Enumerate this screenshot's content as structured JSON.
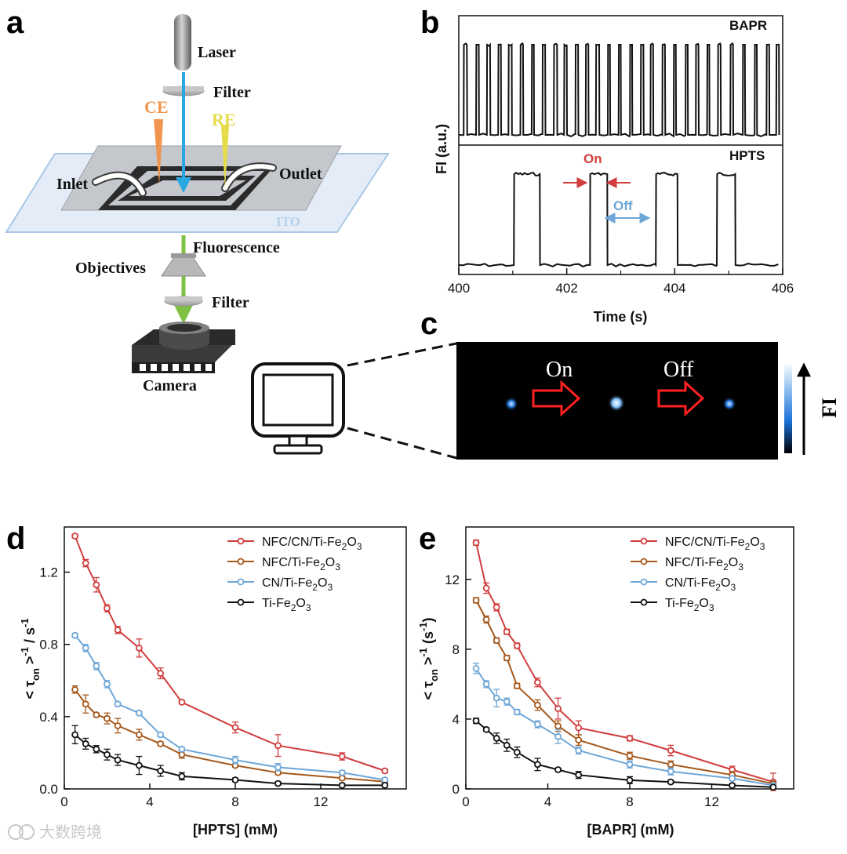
{
  "panels": {
    "a": "a",
    "b": "b",
    "c": "c",
    "d": "d",
    "e": "e"
  },
  "schematic": {
    "laser": "Laser",
    "filter_top": "Filter",
    "ce": "CE",
    "re": "RE",
    "inlet": "Inlet",
    "outlet": "Outlet",
    "ito": "ITO",
    "fluorescence": "Fluorescence",
    "objectives": "Objectives",
    "filter_bottom": "Filter",
    "camera": "Camera"
  },
  "colors": {
    "red": "#d13e3e",
    "brown": "#a5581b",
    "blue": "#6ea6d8",
    "black": "#111111",
    "laser_beam": "#2aa7e0",
    "fluorescence_beam": "#7ec143",
    "ce": "#f0954f",
    "re": "#e6dc4b"
  },
  "trace_panel": {
    "ylabel": "FI (a.u.)",
    "xlabel": "Time (s)",
    "top_label": "BAPR",
    "bottom_label": "HPTS",
    "on_label": "On",
    "off_label": "Off",
    "xlim": [
      400,
      406
    ],
    "xticks": [
      "400",
      "402",
      "404",
      "406"
    ],
    "bapr_pulses": [
      [
        400.09,
        400.15
      ],
      [
        400.32,
        400.37
      ],
      [
        400.52,
        400.58
      ],
      [
        400.73,
        400.78
      ],
      [
        400.92,
        400.98
      ],
      [
        401.14,
        401.19
      ],
      [
        401.35,
        401.39
      ],
      [
        401.55,
        401.6
      ],
      [
        401.76,
        401.82
      ],
      [
        401.95,
        402.0
      ],
      [
        402.16,
        402.21
      ],
      [
        402.35,
        402.4
      ],
      [
        402.54,
        402.6
      ],
      [
        402.76,
        402.8
      ],
      [
        402.96,
        403.0
      ],
      [
        403.17,
        403.21
      ],
      [
        403.37,
        403.42
      ],
      [
        403.55,
        403.6
      ],
      [
        403.77,
        403.82
      ],
      [
        403.98,
        404.02
      ],
      [
        404.2,
        404.24
      ],
      [
        404.39,
        404.44
      ],
      [
        404.6,
        404.64
      ],
      [
        404.8,
        404.85
      ],
      [
        405.03,
        405.08
      ],
      [
        405.26,
        405.3
      ],
      [
        405.48,
        405.52
      ],
      [
        405.7,
        405.75
      ],
      [
        405.88,
        405.93
      ]
    ],
    "hpts_pulses": [
      [
        401.02,
        401.5
      ],
      [
        402.43,
        402.75
      ],
      [
        403.65,
        404.05
      ],
      [
        404.78,
        405.12
      ]
    ]
  },
  "imaging_panel": {
    "on_label": "On",
    "off_label": "Off",
    "fi_label": "FI"
  },
  "chart_data": [
    {
      "type": "line",
      "panel": "d",
      "xlabel": "[HPTS] (mM)",
      "ylabel": "< τon >-1 / s-1",
      "xlim": [
        0,
        16
      ],
      "ylim": [
        0,
        1.45
      ],
      "xticks": [
        0,
        4,
        8,
        12
      ],
      "yticks": [
        0.0,
        0.4,
        0.8,
        1.2
      ],
      "x": [
        0.5,
        1,
        1.5,
        2,
        2.5,
        3.5,
        4.5,
        5.5,
        8,
        10,
        13,
        15
      ],
      "series": [
        {
          "name": "NFC/CN/Ti-Fe2O3",
          "color": "#d13e3e",
          "values": [
            1.4,
            1.25,
            1.13,
            1.0,
            0.88,
            0.78,
            0.64,
            0.48,
            0.34,
            0.24,
            0.18,
            0.1
          ],
          "errors": [
            0.01,
            0.02,
            0.04,
            0.02,
            0.02,
            0.05,
            0.03,
            0.01,
            0.03,
            0.06,
            0.02,
            0.01
          ]
        },
        {
          "name": "NFC/Ti-Fe2O3",
          "color": "#a5581b",
          "values": [
            0.55,
            0.47,
            0.41,
            0.39,
            0.35,
            0.3,
            0.25,
            0.19,
            0.13,
            0.09,
            0.06,
            0.04
          ],
          "errors": [
            0.02,
            0.05,
            0.01,
            0.03,
            0.04,
            0.03,
            0.01,
            0.02,
            0.01,
            0.01,
            0.01,
            0.01
          ]
        },
        {
          "name": "CN/Ti-Fe2O3",
          "color": "#6ea6d8",
          "values": [
            0.85,
            0.78,
            0.68,
            0.58,
            0.47,
            0.42,
            0.3,
            0.22,
            0.16,
            0.12,
            0.09,
            0.05
          ],
          "errors": [
            0.01,
            0.02,
            0.02,
            0.02,
            0.01,
            0.01,
            0.01,
            0.01,
            0.02,
            0.02,
            0.01,
            0.01
          ]
        },
        {
          "name": "Ti-Fe2O3",
          "color": "#111111",
          "values": [
            0.3,
            0.25,
            0.22,
            0.19,
            0.16,
            0.13,
            0.1,
            0.07,
            0.05,
            0.03,
            0.02,
            0.02
          ],
          "errors": [
            0.05,
            0.03,
            0.02,
            0.03,
            0.03,
            0.05,
            0.03,
            0.02,
            0.01,
            0.01,
            0.01,
            0.01
          ]
        }
      ]
    },
    {
      "type": "line",
      "panel": "e",
      "xlabel": "[BAPR] (mM)",
      "ylabel": "< τon >-1 (s-1)",
      "xlim": [
        0,
        16
      ],
      "ylim": [
        0,
        15
      ],
      "xticks": [
        0,
        4,
        8,
        12
      ],
      "yticks": [
        0,
        4,
        8,
        12
      ],
      "x": [
        0.5,
        1,
        1.5,
        2,
        2.5,
        3.5,
        4.5,
        5.5,
        8,
        10,
        13,
        15
      ],
      "series": [
        {
          "name": "NFC/CN/Ti-Fe2O3",
          "color": "#d13e3e",
          "values": [
            14.1,
            11.5,
            10.4,
            9.0,
            8.2,
            6.1,
            4.6,
            3.5,
            2.9,
            2.2,
            1.1,
            0.4
          ],
          "errors": [
            0.15,
            0.3,
            0.2,
            0.15,
            0.15,
            0.25,
            0.6,
            0.4,
            0.15,
            0.3,
            0.2,
            0.5
          ]
        },
        {
          "name": "NFC/Ti-Fe2O3",
          "color": "#a5581b",
          "values": [
            10.8,
            9.7,
            8.5,
            7.5,
            5.9,
            4.8,
            3.6,
            2.8,
            1.9,
            1.4,
            0.8,
            0.3
          ],
          "errors": [
            0.15,
            0.2,
            0.15,
            0.15,
            0.15,
            0.3,
            0.3,
            0.3,
            0.2,
            0.2,
            0.2,
            0.1
          ]
        },
        {
          "name": "CN/Ti-Fe2O3",
          "color": "#6ea6d8",
          "values": [
            6.9,
            6.0,
            5.2,
            5.0,
            4.4,
            3.7,
            3.0,
            2.2,
            1.4,
            1.0,
            0.6,
            0.2
          ],
          "errors": [
            0.3,
            0.2,
            0.5,
            0.2,
            0.15,
            0.2,
            0.4,
            0.2,
            0.2,
            0.2,
            0.1,
            0.1
          ]
        },
        {
          "name": "Ti-Fe2O3",
          "color": "#111111",
          "values": [
            3.9,
            3.4,
            2.9,
            2.5,
            2.1,
            1.4,
            1.1,
            0.8,
            0.5,
            0.4,
            0.2,
            0.1
          ],
          "errors": [
            0.15,
            0.1,
            0.3,
            0.35,
            0.3,
            0.35,
            0.1,
            0.2,
            0.2,
            0.1,
            0.1,
            0.05
          ]
        }
      ]
    }
  ],
  "watermark": "大数跨境"
}
